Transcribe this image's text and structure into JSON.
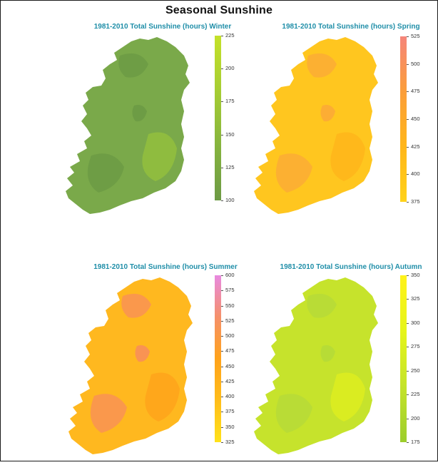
{
  "title": "Seasonal Sunshine",
  "panels": [
    {
      "id": "winter",
      "title": "1981-2010 Total Sunshine (hours)  Winter",
      "legend": {
        "ticks": [
          "225",
          "200",
          "175",
          "150",
          "125",
          "100"
        ],
        "colors": [
          "#6d9a45",
          "#86b43e",
          "#a6cd33",
          "#c4e129"
        ]
      },
      "map_colors": {
        "fill": "#7aa94a",
        "patch": "#98c43a",
        "dark": "#6a9943"
      }
    },
    {
      "id": "spring",
      "title": "1981-2010 Total Sunshine (hours)  Spring",
      "legend": {
        "ticks": [
          "525",
          "500",
          "475",
          "450",
          "425",
          "400",
          "375"
        ],
        "colors": [
          "#ffd21a",
          "#ffb61a",
          "#fb9e3a",
          "#f5857a"
        ]
      },
      "map_colors": {
        "fill": "#ffc61f",
        "patch": "#ffb21a",
        "dark": "#fba63a"
      }
    },
    {
      "id": "summer",
      "title": "1981-2010 Total Sunshine (hours)  Summer",
      "legend": {
        "ticks": [
          "600",
          "575",
          "550",
          "525",
          "500",
          "475",
          "450",
          "425",
          "400",
          "375",
          "350",
          "325"
        ],
        "colors": [
          "#ffe21a",
          "#ffbd1a",
          "#ffa21a",
          "#f5906a",
          "#e88ae0"
        ]
      },
      "map_colors": {
        "fill": "#ffb81f",
        "patch": "#ffa01a",
        "dark": "#f88a60"
      }
    },
    {
      "id": "autumn",
      "title": "1981-2010 Total Sunshine (hours)  Autumn",
      "legend": {
        "ticks": [
          "350",
          "325",
          "300",
          "275",
          "250",
          "225",
          "200",
          "175"
        ],
        "colors": [
          "#9ccd2c",
          "#c4e32a",
          "#e6f51a",
          "#fff21a"
        ]
      },
      "map_colors": {
        "fill": "#c6e32c",
        "patch": "#e2f01c",
        "dark": "#b3d93a"
      }
    }
  ]
}
